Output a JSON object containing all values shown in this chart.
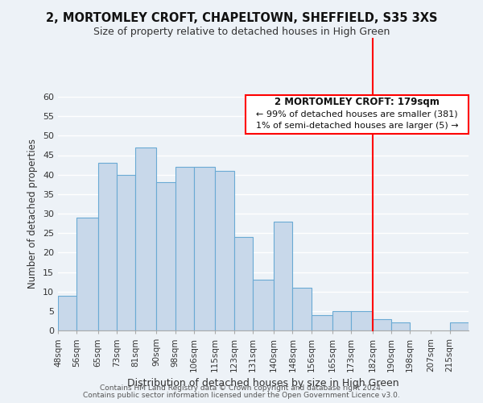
{
  "title": "2, MORTOMLEY CROFT, CHAPELTOWN, SHEFFIELD, S35 3XS",
  "subtitle": "Size of property relative to detached houses in High Green",
  "xlabel": "Distribution of detached houses by size in High Green",
  "ylabel": "Number of detached properties",
  "bar_color": "#c8d8ea",
  "bar_edge_color": "#6aaad4",
  "bins": [
    "48sqm",
    "56sqm",
    "65sqm",
    "73sqm",
    "81sqm",
    "90sqm",
    "98sqm",
    "106sqm",
    "115sqm",
    "123sqm",
    "131sqm",
    "140sqm",
    "148sqm",
    "156sqm",
    "165sqm",
    "173sqm",
    "182sqm",
    "190sqm",
    "198sqm",
    "207sqm",
    "215sqm"
  ],
  "values": [
    9,
    29,
    43,
    40,
    47,
    38,
    42,
    42,
    41,
    24,
    13,
    28,
    11,
    4,
    5,
    5,
    3,
    2,
    0,
    0,
    2
  ],
  "ylim": [
    0,
    60
  ],
  "yticks": [
    0,
    5,
    10,
    15,
    20,
    25,
    30,
    35,
    40,
    45,
    50,
    55,
    60
  ],
  "marker_label": "2 MORTOMLEY CROFT: 179sqm",
  "annotation_line1": "← 99% of detached houses are smaller (381)",
  "annotation_line2": "1% of semi-detached houses are larger (5) →",
  "footer1": "Contains HM Land Registry data © Crown copyright and database right 2024.",
  "footer2": "Contains public sector information licensed under the Open Government Licence v3.0.",
  "background_color": "#edf2f7",
  "grid_color": "#ffffff",
  "bin_edges": [
    48,
    56,
    65,
    73,
    81,
    90,
    98,
    106,
    115,
    123,
    131,
    140,
    148,
    156,
    165,
    173,
    182,
    190,
    198,
    207,
    215,
    223
  ]
}
